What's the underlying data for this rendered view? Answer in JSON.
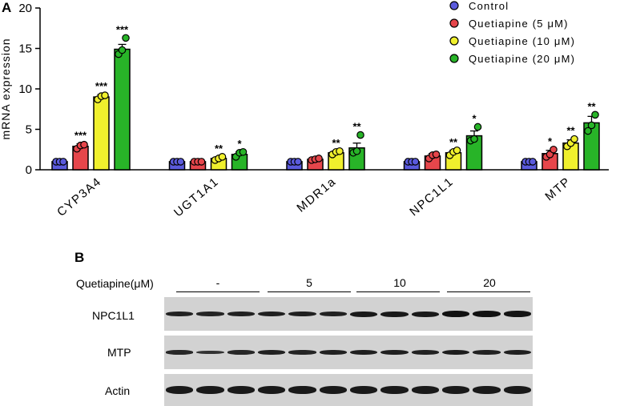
{
  "panel_a_label": "A",
  "panel_b_label": "B",
  "chart_data": {
    "type": "bar",
    "ylabel": "mRNA expression",
    "ylim": [
      0,
      20
    ],
    "yticks": [
      0,
      5,
      10,
      15,
      20
    ],
    "categories": [
      "CYP3A4",
      "UGT1A1",
      "MDR1a",
      "NPC1L1",
      "MTP"
    ],
    "legend_position": "top-right",
    "series": [
      {
        "name": "Control",
        "color": "#5a5adc",
        "values": [
          1.0,
          1.0,
          1.0,
          1.0,
          1.0
        ],
        "errors": [
          0.1,
          0.1,
          0.1,
          0.1,
          0.1
        ],
        "points": [
          [
            1.0,
            1.0,
            1.0
          ],
          [
            1.0,
            1.0,
            1.0
          ],
          [
            1.0,
            1.0,
            1.0
          ],
          [
            1.0,
            1.0,
            1.0
          ],
          [
            1.0,
            1.0,
            1.0
          ]
        ],
        "significance": [
          "",
          "",
          "",
          "",
          ""
        ]
      },
      {
        "name": "Quetiapine (5 μM)",
        "color": "#e6464b",
        "values": [
          2.9,
          1.0,
          1.3,
          1.7,
          2.0
        ],
        "errors": [
          0.3,
          0.1,
          0.1,
          0.3,
          0.4
        ],
        "points": [
          [
            2.6,
            3.0,
            3.1
          ],
          [
            1.0,
            1.0,
            1.0
          ],
          [
            1.2,
            1.3,
            1.4
          ],
          [
            1.4,
            1.8,
            1.9
          ],
          [
            1.6,
            1.9,
            2.5
          ]
        ],
        "significance": [
          "***",
          "",
          "",
          "",
          "*"
        ]
      },
      {
        "name": "Quetiapine (10 μM)",
        "color": "#f0f02d",
        "values": [
          9.0,
          1.4,
          2.1,
          2.1,
          3.3
        ],
        "errors": [
          0.3,
          0.2,
          0.2,
          0.3,
          0.4
        ],
        "points": [
          [
            8.7,
            9.1,
            9.2
          ],
          [
            1.2,
            1.4,
            1.6
          ],
          [
            1.9,
            2.2,
            2.3
          ],
          [
            1.8,
            2.2,
            2.4
          ],
          [
            2.9,
            3.3,
            3.8
          ]
        ],
        "significance": [
          "***",
          "**",
          "**",
          "**",
          "**"
        ]
      },
      {
        "name": "Quetiapine (20 μM)",
        "color": "#28b428",
        "values": [
          14.9,
          1.9,
          2.7,
          4.2,
          5.8
        ],
        "errors": [
          0.6,
          0.3,
          0.6,
          0.6,
          0.8
        ],
        "points": [
          [
            14.3,
            14.8,
            16.3
          ],
          [
            1.6,
            2.1,
            2.2
          ],
          [
            2.1,
            2.3,
            4.3
          ],
          [
            3.6,
            3.8,
            5.3
          ],
          [
            4.8,
            5.5,
            6.8
          ]
        ],
        "significance": [
          "***",
          "*",
          "**",
          "*",
          "**"
        ]
      }
    ]
  },
  "western_blot": {
    "treatment_label": "Quetiapine(μM)",
    "concentrations": [
      "-",
      "5",
      "10",
      "20"
    ],
    "rows": [
      {
        "label": "NPC1L1",
        "intensities": [
          0.85,
          0.8,
          0.85,
          0.9,
          0.9,
          0.85,
          1.0,
          1.0,
          1.0,
          1.15,
          1.15,
          1.1
        ]
      },
      {
        "label": "MTP",
        "intensities": [
          0.75,
          0.55,
          0.75,
          0.85,
          0.8,
          0.85,
          0.9,
          0.9,
          0.85,
          0.95,
          0.85,
          0.9
        ]
      },
      {
        "label": "Actin",
        "intensities": [
          1.0,
          1.0,
          1.0,
          1.0,
          1.0,
          1.0,
          1.0,
          1.0,
          1.0,
          1.0,
          1.0,
          1.0
        ]
      }
    ]
  }
}
